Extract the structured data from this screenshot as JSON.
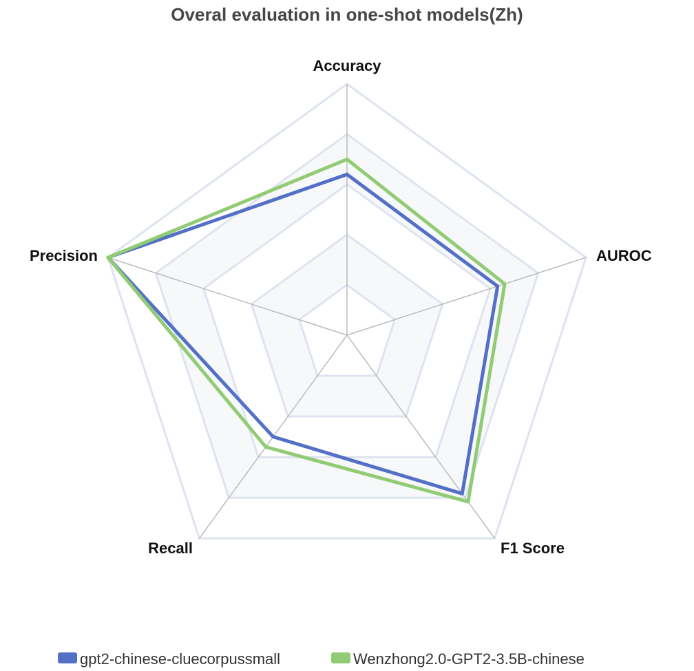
{
  "chart_data": {
    "type": "radar",
    "title": "Overal evaluation in one-shot models(Zh)",
    "indicators": [
      "Accuracy",
      "AUROC",
      "F1 Score",
      "Recall",
      "Precision"
    ],
    "max": 1.0,
    "rings": 5,
    "series": [
      {
        "name": "gpt2-chinese-cluecorpussmall",
        "color": "#5470c6",
        "values": [
          0.64,
          0.63,
          0.78,
          0.5,
          1.0
        ]
      },
      {
        "name": "Wenzhong2.0-GPT2-3.5B-chinese",
        "color": "#91cc75",
        "values": [
          0.7,
          0.66,
          0.82,
          0.55,
          1.0
        ]
      }
    ],
    "legend_position": "bottom-center"
  }
}
